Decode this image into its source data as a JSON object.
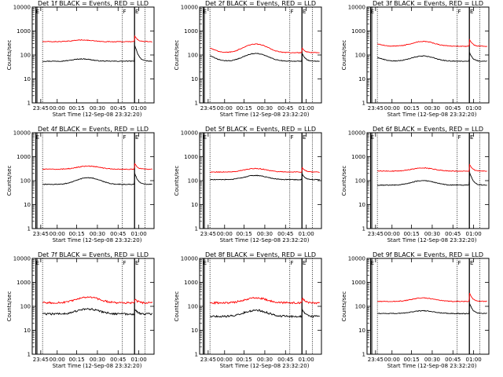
{
  "chart_data": [
    {
      "type": "line",
      "title": "Det 1f BLACK = Events, RED = LLD",
      "xlabel": "Start Time (12-Sep-08 23:32:20)",
      "ylabel": "Counts/sec",
      "x_ticks": [
        "23:45",
        "00:00",
        "00:15",
        "00:30",
        "00:45",
        "01:00"
      ],
      "y_ticks": [
        "1",
        "10",
        "100",
        "1000",
        "10000"
      ],
      "ylim": [
        1,
        10000
      ],
      "yscale": "log",
      "markers": {
        "labels": [
          "E",
          "F",
          "E"
        ]
      },
      "series": [
        {
          "color": "#000000",
          "baseline": 55,
          "features": [
            [
              0.41,
              0.1,
              0.25
            ],
            [
              0.84,
              0.01,
              4.0
            ]
          ]
        },
        {
          "color": "#ff0000",
          "baseline": 360,
          "features": [
            [
              0.41,
              0.1,
              0.18
            ],
            [
              0.84,
              0.01,
              0.8
            ]
          ]
        }
      ]
    },
    {
      "type": "line",
      "title": "Det 2f BLACK = Events, RED = LLD",
      "xlabel": "Start Time (12-Sep-08 23:32:20)",
      "ylabel": "Counts/sec",
      "x_ticks": [
        "23:45",
        "00:00",
        "00:15",
        "00:30",
        "00:45",
        "01:00"
      ],
      "y_ticks": [
        "1",
        "10",
        "100",
        "1000",
        "10000"
      ],
      "ylim": [
        1,
        10000
      ],
      "yscale": "log",
      "markers": {
        "labels": [
          "E",
          "F",
          "E"
        ]
      },
      "series": [
        {
          "color": "#000000",
          "baseline": 55,
          "features": [
            [
              0.03,
              0.1,
              0.9
            ],
            [
              0.46,
              0.12,
              1.1
            ],
            [
              0.84,
              0.01,
              1.3
            ]
          ]
        },
        {
          "color": "#ff0000",
          "baseline": 125,
          "features": [
            [
              0.03,
              0.1,
              0.7
            ],
            [
              0.46,
              0.12,
              1.3
            ],
            [
              0.84,
              0.01,
              0.6
            ]
          ]
        }
      ]
    },
    {
      "type": "line",
      "title": "Det 3f BLACK = Events, RED = LLD",
      "xlabel": "Start Time (12-Sep-08 23:32:20)",
      "ylabel": "Counts/sec",
      "x_ticks": [
        "23:45",
        "00:00",
        "00:15",
        "00:30",
        "00:45",
        "01:00"
      ],
      "y_ticks": [
        "1",
        "10",
        "100",
        "1000",
        "10000"
      ],
      "ylim": [
        1,
        10000
      ],
      "yscale": "log",
      "markers": {
        "labels": [
          "E",
          "F",
          "E"
        ]
      },
      "series": [
        {
          "color": "#000000",
          "baseline": 55,
          "features": [
            [
              0.03,
              0.1,
              0.6
            ],
            [
              0.46,
              0.12,
              0.65
            ],
            [
              0.84,
              0.01,
              1.4
            ]
          ]
        },
        {
          "color": "#ff0000",
          "baseline": 230,
          "features": [
            [
              0.03,
              0.1,
              0.35
            ],
            [
              0.46,
              0.12,
              0.6
            ],
            [
              0.84,
              0.01,
              1.0
            ]
          ]
        }
      ]
    },
    {
      "type": "line",
      "title": "Det 4f BLACK = Events, RED = LLD",
      "xlabel": "Start Time (12-Sep-08 23:32:20)",
      "ylabel": "Counts/sec",
      "x_ticks": [
        "23:45",
        "00:00",
        "00:15",
        "00:30",
        "00:45",
        "01:00"
      ],
      "y_ticks": [
        "1",
        "10",
        "100",
        "1000",
        "10000"
      ],
      "ylim": [
        1,
        10000
      ],
      "yscale": "log",
      "markers": {
        "labels": [
          "E",
          "F",
          "E"
        ]
      },
      "series": [
        {
          "color": "#000000",
          "baseline": 70,
          "features": [
            [
              0.46,
              0.12,
              0.9
            ],
            [
              0.84,
              0.01,
              2.0
            ]
          ]
        },
        {
          "color": "#ff0000",
          "baseline": 300,
          "features": [
            [
              0.46,
              0.12,
              0.35
            ],
            [
              0.84,
              0.01,
              0.8
            ]
          ]
        }
      ]
    },
    {
      "type": "line",
      "title": "Det 5f BLACK = Events, RED = LLD",
      "xlabel": "Start Time (12-Sep-08 23:32:20)",
      "ylabel": "Counts/sec",
      "x_ticks": [
        "23:45",
        "00:00",
        "00:15",
        "00:30",
        "00:45",
        "01:00"
      ],
      "y_ticks": [
        "1",
        "10",
        "100",
        "1000",
        "10000"
      ],
      "ylim": [
        1,
        10000
      ],
      "yscale": "log",
      "markers": {
        "labels": [
          "E",
          "F",
          "E"
        ]
      },
      "series": [
        {
          "color": "#000000",
          "baseline": 110,
          "features": [
            [
              0.46,
              0.12,
              0.5
            ],
            [
              0.84,
              0.01,
              0.8
            ]
          ]
        },
        {
          "color": "#ff0000",
          "baseline": 230,
          "features": [
            [
              0.46,
              0.12,
              0.4
            ],
            [
              0.84,
              0.01,
              0.6
            ]
          ]
        }
      ]
    },
    {
      "type": "line",
      "title": "Det 6f BLACK = Events, RED = LLD",
      "xlabel": "Start Time (12-Sep-08 23:32:20)",
      "ylabel": "Counts/sec",
      "x_ticks": [
        "23:45",
        "00:00",
        "00:15",
        "00:30",
        "00:45",
        "01:00"
      ],
      "y_ticks": [
        "1",
        "10",
        "100",
        "1000",
        "10000"
      ],
      "ylim": [
        1,
        10000
      ],
      "yscale": "log",
      "markers": {
        "labels": [
          "E",
          "F",
          "E"
        ]
      },
      "series": [
        {
          "color": "#000000",
          "baseline": 65,
          "features": [
            [
              0.46,
              0.12,
              0.55
            ],
            [
              0.84,
              0.01,
              2.6
            ]
          ]
        },
        {
          "color": "#ff0000",
          "baseline": 250,
          "features": [
            [
              0.46,
              0.12,
              0.35
            ],
            [
              0.84,
              0.01,
              1.0
            ]
          ]
        }
      ]
    },
    {
      "type": "line",
      "title": "Det 7f BLACK = Events, RED = LLD",
      "xlabel": "Start Time (12-Sep-08 23:32:20)",
      "ylabel": "Counts/sec",
      "x_ticks": [
        "23:45",
        "00:00",
        "00:15",
        "00:30",
        "00:45",
        "01:00"
      ],
      "y_ticks": [
        "1",
        "10",
        "100",
        "1000",
        "10000"
      ],
      "ylim": [
        1,
        10000
      ],
      "yscale": "log",
      "markers": {
        "labels": [
          "E",
          "F",
          "E"
        ]
      },
      "series": [
        {
          "color": "#000000",
          "baseline": 48,
          "features": [
            [
              0.46,
              0.12,
              0.6
            ],
            [
              0.84,
              0.01,
              0.6
            ]
          ]
        },
        {
          "color": "#ff0000",
          "baseline": 140,
          "features": [
            [
              0.46,
              0.12,
              0.7
            ],
            [
              0.84,
              0.01,
              0.5
            ]
          ]
        }
      ]
    },
    {
      "type": "line",
      "title": "Det 8f BLACK = Events, RED = LLD",
      "xlabel": "Start Time (12-Sep-08 23:32:20)",
      "ylabel": "Counts/sec",
      "x_ticks": [
        "23:45",
        "00:00",
        "00:15",
        "00:30",
        "00:45",
        "01:00"
      ],
      "y_ticks": [
        "1",
        "10",
        "100",
        "1000",
        "10000"
      ],
      "ylim": [
        1,
        10000
      ],
      "yscale": "log",
      "markers": {
        "labels": [
          "E",
          "F",
          "E"
        ]
      },
      "series": [
        {
          "color": "#000000",
          "baseline": 38,
          "features": [
            [
              0.46,
              0.12,
              0.8
            ],
            [
              0.84,
              0.01,
              1.1
            ]
          ]
        },
        {
          "color": "#ff0000",
          "baseline": 140,
          "features": [
            [
              0.46,
              0.12,
              0.6
            ],
            [
              0.84,
              0.01,
              0.7
            ]
          ]
        }
      ]
    },
    {
      "type": "line",
      "title": "Det 9f BLACK = Events, RED = LLD",
      "xlabel": "Start Time (12-Sep-08 23:32:20)",
      "ylabel": "Counts/sec",
      "x_ticks": [
        "23:45",
        "00:00",
        "00:15",
        "00:30",
        "00:45",
        "01:00"
      ],
      "y_ticks": [
        "1",
        "10",
        "100",
        "1000",
        "10000"
      ],
      "ylim": [
        1,
        10000
      ],
      "yscale": "log",
      "markers": {
        "labels": [
          "E",
          "F",
          "E"
        ]
      },
      "series": [
        {
          "color": "#000000",
          "baseline": 50,
          "features": [
            [
              0.46,
              0.12,
              0.3
            ],
            [
              0.84,
              0.01,
              1.8
            ]
          ]
        },
        {
          "color": "#ff0000",
          "baseline": 160,
          "features": [
            [
              0.46,
              0.12,
              0.4
            ],
            [
              0.84,
              0.01,
              1.3
            ]
          ]
        }
      ]
    }
  ]
}
